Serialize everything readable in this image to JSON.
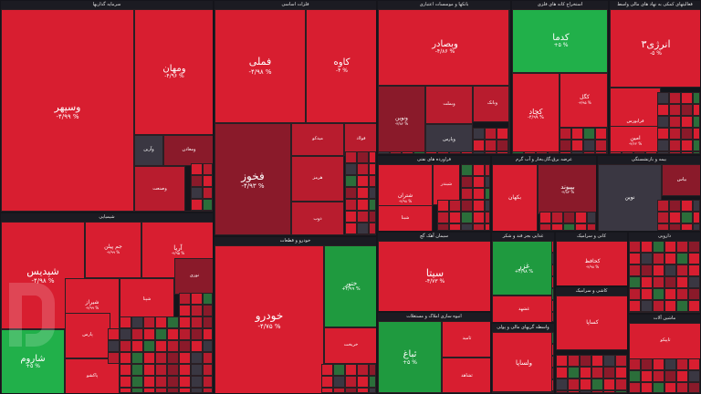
{
  "chart_data": {
    "type": "treemap",
    "colors": {
      "strong_negative": "#d81e30",
      "negative": "#b81c2e",
      "mild_negative": "#8a1a2a",
      "neutral": "#3a3742",
      "mild_positive": "#2b6e3a",
      "positive": "#1f9a3f",
      "strong_positive": "#21b04a"
    },
    "sectors": [
      {
        "title": "سرمایه گذاریها",
        "tiles": [
          {
            "name": "وسپهر",
            "change": "-۴/۹۹ %",
            "level": "strong_negative"
          },
          {
            "name": "ومهان",
            "change": "-۴/۹۶ %",
            "level": "strong_negative"
          },
          {
            "name": "وآرین",
            "change": "",
            "level": "neutral"
          },
          {
            "name": "ومعادن",
            "change": "",
            "level": "mild_negative"
          },
          {
            "name": "وصنعت",
            "change": "",
            "level": "negative"
          }
        ]
      },
      {
        "title": "فلزات اساسی",
        "tiles": [
          {
            "name": "فملی",
            "change": "-۴/۹۸ %",
            "level": "strong_negative"
          },
          {
            "name": "کاوه",
            "change": "-۴ %",
            "level": "strong_negative"
          },
          {
            "name": "فخوز",
            "change": "-۴/۹۳ %",
            "level": "mild_negative"
          },
          {
            "name": "میدکو",
            "change": "",
            "level": "negative"
          },
          {
            "name": "فولاد",
            "change": "",
            "level": "negative"
          },
          {
            "name": "هرمز",
            "change": "",
            "level": "negative"
          },
          {
            "name": "ذوب",
            "change": "",
            "level": "negative"
          }
        ]
      },
      {
        "title": "بانکها و موسسات اعتباری",
        "tiles": [
          {
            "name": "وبصادر",
            "change": "-۴/۸۶ %",
            "level": "strong_negative"
          },
          {
            "name": "ونوین",
            "change": "-۳/۸۲ %",
            "level": "mild_negative"
          },
          {
            "name": "وبملت",
            "change": "",
            "level": "negative"
          },
          {
            "name": "وپارس",
            "change": "",
            "level": "neutral"
          },
          {
            "name": "وبانک",
            "change": "",
            "level": "negative"
          }
        ]
      },
      {
        "title": "استخراج کانه های فلزی",
        "tiles": [
          {
            "name": "کدما",
            "change": "+۵ %",
            "level": "strong_positive"
          },
          {
            "name": "کچاد",
            "change": "-۴/۹۹ %",
            "level": "strong_negative"
          },
          {
            "name": "کگل",
            "change": "-۴/۹۵ %",
            "level": "strong_negative"
          }
        ]
      },
      {
        "title": "فعالیتهای کمکی به نهاد های مالی واسط",
        "tiles": [
          {
            "name": "انرژی۳",
            "change": "-۵ %",
            "level": "strong_negative"
          },
          {
            "name": "فرابورس",
            "change": "",
            "level": "strong_negative"
          },
          {
            "name": "امین",
            "change": "-۴/۶۲ %",
            "level": "strong_negative"
          }
        ]
      },
      {
        "title": "شیمیایی",
        "tiles": [
          {
            "name": "شپدیس",
            "change": "-۴/۹۸ %",
            "level": "strong_negative"
          },
          {
            "name": "جم پیلن",
            "change": "-۴/۹۹ %",
            "level": "strong_negative"
          },
          {
            "name": "آریا",
            "change": "-۴/۹۵ %",
            "level": "strong_negative"
          },
          {
            "name": "شیراز",
            "change": "-۴/۹۹ %",
            "level": "strong_negative"
          },
          {
            "name": "نوری",
            "change": "",
            "level": "mild_negative"
          },
          {
            "name": "شاروم",
            "change": "+۵ %",
            "level": "strong_positive"
          },
          {
            "name": "پارس",
            "change": "",
            "level": "strong_negative"
          },
          {
            "name": "پاکشو",
            "change": "",
            "level": "strong_negative"
          },
          {
            "name": "شپنا",
            "change": "",
            "level": "strong_negative"
          }
        ]
      },
      {
        "title": "خودرو و قطعات",
        "tiles": [
          {
            "name": "خودرو",
            "change": "-۴/۷۵ %",
            "level": "strong_negative"
          },
          {
            "name": "ختور",
            "change": "+۴/۹۹ %",
            "level": "positive"
          },
          {
            "name": "خریخت",
            "change": "",
            "level": "strong_negative"
          }
        ]
      },
      {
        "title": "فراورده های نفتی",
        "tiles": [
          {
            "name": "شتران",
            "change": "-۴/۹۸ %",
            "level": "strong_negative"
          },
          {
            "name": "شبندر",
            "change": "",
            "level": "strong_negative"
          },
          {
            "name": "شبنا",
            "change": "",
            "level": "strong_negative"
          }
        ]
      },
      {
        "title": "عرضه برق،گاز،بخار و آب گرم",
        "tiles": [
          {
            "name": "بکهان",
            "change": "",
            "level": "strong_negative"
          },
          {
            "name": "بپیوند",
            "change": "-۴/۸۳ %",
            "level": "mild_negative"
          }
        ]
      },
      {
        "title": "بیمه و بازنشستگی",
        "tiles": [
          {
            "name": "نوین",
            "change": "",
            "level": "neutral"
          },
          {
            "name": "بیاس",
            "change": "",
            "level": "mild_negative"
          }
        ]
      },
      {
        "title": "سیمان آهک گچ",
        "tiles": [
          {
            "name": "سیتا",
            "change": "-۴/۷۳ %",
            "level": "strong_negative"
          }
        ]
      },
      {
        "title": "غذایی بجز قند و شکر",
        "tiles": [
          {
            "name": "غزر",
            "change": "+۴/۹۸ %",
            "level": "positive"
          },
          {
            "name": "غشهد",
            "change": "",
            "level": "strong_negative"
          }
        ]
      },
      {
        "title": "کانی و سرامیک",
        "tiles": [
          {
            "name": "کحافظ",
            "change": "-۴/۹۸ %",
            "level": "strong_negative"
          }
        ]
      },
      {
        "title": "دارویی",
        "tiles": []
      },
      {
        "title": "انبوه سازی املاک و مستغلات",
        "tiles": [
          {
            "name": "ثباغ",
            "change": "+۵ %",
            "level": "positive"
          },
          {
            "name": "ثامید",
            "change": "",
            "level": "strong_negative"
          },
          {
            "name": "ثشاهد",
            "change": "",
            "level": "strong_negative"
          }
        ]
      },
      {
        "title": "واسطه گریهای مالی و پولی",
        "tiles": [
          {
            "name": "ولساپا",
            "change": "",
            "level": "strong_negative"
          }
        ]
      },
      {
        "title": "کاشی و سرامیک",
        "tiles": [
          {
            "name": "کساپا",
            "change": "",
            "level": "strong_negative"
          }
        ]
      },
      {
        "title": "ماشین آلات",
        "tiles": [
          {
            "name": "تاپیکو",
            "change": "",
            "level": "strong_negative"
          }
        ]
      }
    ]
  }
}
